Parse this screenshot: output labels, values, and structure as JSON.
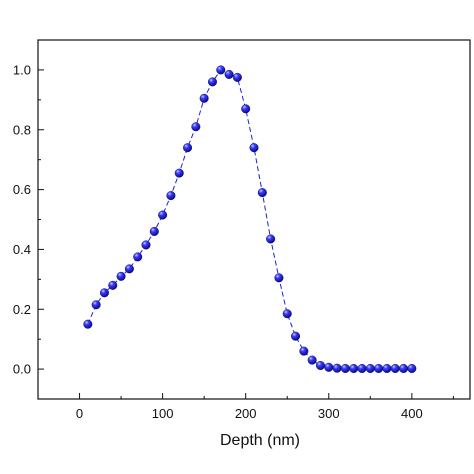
{
  "chart_data": {
    "type": "scatter",
    "xlabel": "Depth (nm)",
    "ylabel": "",
    "xlim": [
      -50,
      470
    ],
    "ylim": [
      -0.1,
      1.1
    ],
    "x_ticks": [
      0,
      100,
      200,
      300,
      400
    ],
    "x_tick_labels": [
      "0",
      "100",
      "200",
      "300",
      "400"
    ],
    "y_ticks": [
      0.0,
      0.2,
      0.4,
      0.6,
      0.8,
      1.0
    ],
    "y_tick_labels": [
      "0.0",
      "0.2",
      "0.4",
      "0.6",
      "0.8",
      "1.0"
    ],
    "grid": false,
    "series": [
      {
        "color": "#1f1fd6",
        "line_style": "dashed",
        "marker": "sphere",
        "x": [
          10,
          20,
          30,
          40,
          50,
          60,
          70,
          80,
          90,
          100,
          110,
          120,
          130,
          140,
          150,
          160,
          170,
          180,
          190,
          200,
          210,
          220,
          230,
          240,
          250,
          260,
          270,
          280,
          290,
          300,
          310,
          320,
          330,
          340,
          350,
          360,
          370,
          380,
          390,
          400
        ],
        "y": [
          0.15,
          0.215,
          0.255,
          0.28,
          0.31,
          0.335,
          0.375,
          0.415,
          0.46,
          0.515,
          0.58,
          0.655,
          0.74,
          0.81,
          0.905,
          0.96,
          1.0,
          0.985,
          0.975,
          0.87,
          0.74,
          0.59,
          0.435,
          0.305,
          0.185,
          0.11,
          0.06,
          0.03,
          0.012,
          0.006,
          0.003,
          0.002,
          0.002,
          0.002,
          0.002,
          0.002,
          0.002,
          0.002,
          0.002,
          0.002
        ]
      }
    ]
  }
}
